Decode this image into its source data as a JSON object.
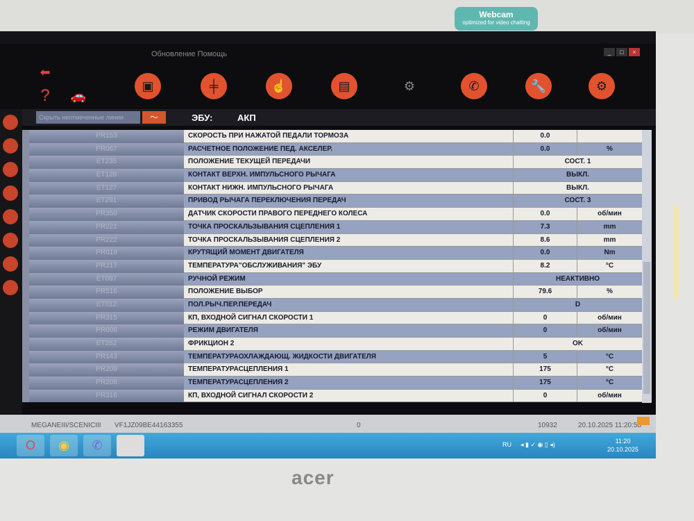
{
  "bezel": {
    "webcam_badge": "Webcam",
    "webcam_sub": "optimized for video chatting",
    "brand": "acer"
  },
  "menu": {
    "items": "Обновление  Помощь"
  },
  "window_controls": [
    "_",
    "□",
    "×"
  ],
  "toolbar": {
    "icons": [
      "back-arrow-icon",
      "help-icon",
      "vehicle-alert-icon",
      "vehicle-diagnostic-icon",
      "gearbox-icon",
      "touch-icon",
      "parameters-screen-icon",
      "gear-car-icon",
      "phone-support-icon",
      "wrench-icon",
      "car-settings-icon"
    ]
  },
  "header": {
    "filter_label": "Скрыть неотмеченные линии",
    "ecu_label": "ЭБУ:",
    "ecu_value": "АКП"
  },
  "rows": [
    {
      "code": "PR153",
      "name": "СКОРОСТЬ ПРИ НАЖАТОЙ ПЕДАЛИ ТОРМОЗА",
      "value": "0.0",
      "unit": ""
    },
    {
      "code": "PR067",
      "name": "РАСЧЕТНОЕ ПОЛОЖЕНИЕ ПЕД. АКСЕЛЕР.",
      "value": "0.0",
      "unit": "%"
    },
    {
      "code": "ET235",
      "name": "ПОЛОЖЕНИЕ ТЕКУЩЕЙ ПЕРЕДАЧИ",
      "state": "СОСТ. 1"
    },
    {
      "code": "ET128",
      "name": "КОНТАКТ ВЕРХН. ИМПУЛЬСНОГО РЫЧАГА",
      "state": "ВЫКЛ."
    },
    {
      "code": "ET127",
      "name": "КОНТАКТ НИЖН. ИМПУЛЬСНОГО РЫЧАГА",
      "state": "ВЫКЛ."
    },
    {
      "code": "ET291",
      "name": "ПРИВОД РЫЧАГА ПЕРЕКЛЮЧЕНИЯ ПЕРЕДАЧ",
      "state": "СОСТ. 3"
    },
    {
      "code": "PR350",
      "name": "ДАТЧИК СКОРОСТИ ПРАВОГО ПЕРЕДНЕГО КОЛЕСА",
      "value": "0.0",
      "unit": "об/мин"
    },
    {
      "code": "PR221",
      "name": "ТОЧКА ПРОСКАЛЬЗЫВАНИЯ СЦЕПЛЕНИЯ 1",
      "value": "7.3",
      "unit": "mm"
    },
    {
      "code": "PR222",
      "name": "ТОЧКА ПРОСКАЛЬЗЫВАНИЯ СЦЕПЛЕНИЯ 2",
      "value": "8.6",
      "unit": "mm"
    },
    {
      "code": "PR019",
      "name": "КРУТЯЩИЙ МОМЕНТ ДВИГАТЕЛЯ",
      "value": "0.0",
      "unit": "Nm"
    },
    {
      "code": "PR217",
      "name": "ТЕМПЕРАТУРА\"ОБСЛУЖИВАНИЯ\" ЭБУ",
      "value": "8.2",
      "unit": "°C"
    },
    {
      "code": "ET097",
      "name": "РУЧНОЙ РЕЖИМ",
      "state": "НЕАКТИВНО"
    },
    {
      "code": "PR516",
      "name": "ПОЛОЖЕНИЕ ВЫБОР",
      "value": "79.6",
      "unit": "%"
    },
    {
      "code": "ET012",
      "name": "ПОЛ.РЫЧ.ПЕР.ПЕРЕДАЧ",
      "state": "D"
    },
    {
      "code": "PR315",
      "name": "КП, ВХОДНОЙ СИГНАЛ СКОРОСТИ 1",
      "value": "0",
      "unit": "об/мин"
    },
    {
      "code": "PR006",
      "name": "РЕЖИМ ДВИГАТЕЛЯ",
      "value": "0",
      "unit": "об/мин"
    },
    {
      "code": "ET262",
      "name": "ФРИКЦИОН 2",
      "state": "OK"
    },
    {
      "code": "PR143",
      "name": "ТЕМПЕРАТУРАОХЛАЖДАЮЩ. ЖИДКОСТИ ДВИГАТЕЛЯ",
      "value": "5",
      "unit": "°C"
    },
    {
      "code": "PR209",
      "name": "ТЕМПЕРАТУРАСЦЕПЛЕНИЯ 1",
      "value": "175",
      "unit": "°C"
    },
    {
      "code": "PR208",
      "name": "ТЕМПЕРАТУРАСЦЕПЛЕНИЯ 2",
      "value": "175",
      "unit": "°C"
    },
    {
      "code": "PR316",
      "name": "КП, ВХОДНОЙ СИГНАЛ СКОРОСТИ 2",
      "value": "0",
      "unit": "об/мин"
    }
  ],
  "status": {
    "model": "MEGANEIII/SCENICIII",
    "vin": "VF1JZ09BE44163355",
    "mid": "0",
    "counter": "10932",
    "datetime": "20.10.2025 11:20:58"
  },
  "taskbar": {
    "lang": "RU",
    "time": "11:20",
    "date": "20.10.2025"
  },
  "colors": {
    "accent": "#e2522e",
    "row_light": "#ecebe6",
    "row_dark": "#95a2c0"
  }
}
